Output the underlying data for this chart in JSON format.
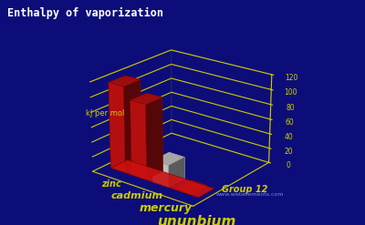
{
  "title": "Enthalpy of vaporization",
  "elements": [
    "zinc",
    "cadmium",
    "mercury",
    "ununbium"
  ],
  "values": [
    115.3,
    99.9,
    29.0,
    0.5
  ],
  "ylabel": "kJ per mol",
  "group_label": "Group 12",
  "watermark": "www.webelements.com",
  "background_color": "#0d0d7a",
  "bar_colors": [
    "#cc1111",
    "#cc1111",
    "#d8d8d8",
    "#cc1111"
  ],
  "base_color": "#cc1111",
  "grid_color": "#cccc00",
  "label_color": "#cccc00",
  "title_color": "#ffffff",
  "ylim": [
    0,
    120
  ],
  "yticks": [
    0,
    20,
    40,
    60,
    80,
    100,
    120
  ],
  "elev": 22,
  "azim": -52
}
